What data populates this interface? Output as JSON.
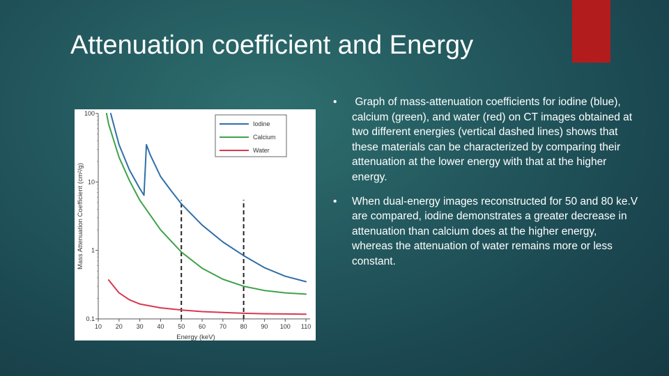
{
  "slide": {
    "title": "Attenuation coefficient and Energy",
    "accent_color": "#b31c1c"
  },
  "bullets": [
    {
      "marker": "•",
      "text": " Graph of mass-attenuation coefficients for iodine (blue), calcium (green), and water (red) on CT images obtained at two different energies (vertical dashed lines) shows that these materials can be characterized by comparing their attenuation at the lower energy with that at the higher energy."
    },
    {
      "marker": "•",
      "text": "When dual-energy images reconstructed for 50 and 80 ke.V are compared, iodine demonstrates a greater decrease in attenuation than calcium does at the higher energy, whereas the attenuation of water remains more or less constant."
    }
  ],
  "chart_data": {
    "type": "line",
    "xlabel": "Energy (keV)",
    "ylabel": "Mass Attenuation Coefficient (cm²/g)",
    "y_scale": "log",
    "xlim": [
      10,
      112
    ],
    "ylim": [
      0.1,
      100
    ],
    "x_ticks": [
      10,
      20,
      30,
      40,
      50,
      60,
      70,
      80,
      90,
      100,
      110
    ],
    "y_ticks": [
      {
        "value": 0.1,
        "label": "0.1"
      },
      {
        "value": 1,
        "label": "1"
      },
      {
        "value": 10,
        "label": "10"
      },
      {
        "value": 100,
        "label": "100"
      }
    ],
    "legend_position": "top-right",
    "vlines": [
      {
        "x": 50,
        "style": "dashed",
        "color": "#222222"
      },
      {
        "x": 80,
        "style": "dashed",
        "color": "#222222"
      }
    ],
    "series": [
      {
        "name": "Iodine",
        "color": "#2f6fa8",
        "x": [
          16,
          20,
          25,
          30,
          32,
          33.2,
          35,
          40,
          45,
          50,
          60,
          70,
          80,
          90,
          100,
          110
        ],
        "y": [
          100,
          35,
          15,
          8,
          6.4,
          35,
          25,
          12,
          7.5,
          4.8,
          2.35,
          1.33,
          0.84,
          0.56,
          0.42,
          0.35
        ]
      },
      {
        "name": "Calcium",
        "color": "#3fa24a",
        "x": [
          14,
          15,
          20,
          25,
          30,
          40,
          50,
          60,
          70,
          80,
          90,
          100,
          110
        ],
        "y": [
          100,
          70,
          23,
          10.5,
          5.4,
          2.0,
          0.95,
          0.55,
          0.38,
          0.3,
          0.26,
          0.24,
          0.23
        ]
      },
      {
        "name": "Water",
        "color": "#d8384e",
        "x": [
          15,
          20,
          25,
          30,
          40,
          50,
          60,
          70,
          80,
          90,
          100,
          110
        ],
        "y": [
          0.37,
          0.24,
          0.19,
          0.165,
          0.145,
          0.135,
          0.128,
          0.124,
          0.121,
          0.119,
          0.118,
          0.117
        ]
      }
    ]
  }
}
